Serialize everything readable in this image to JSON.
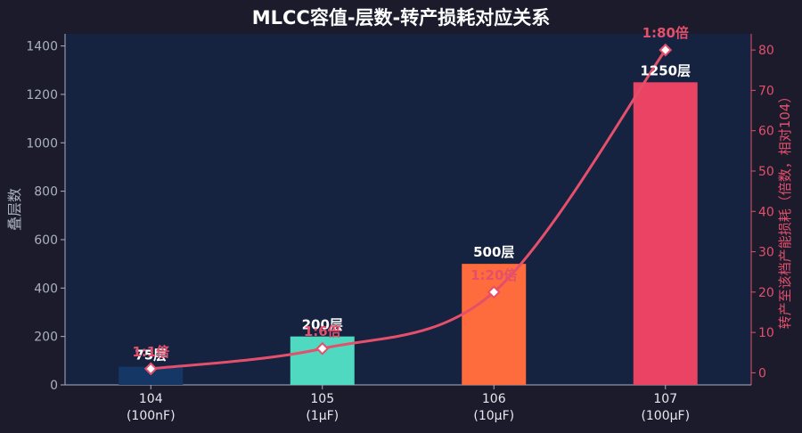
{
  "chart_data": {
    "type": "bar",
    "title": "MLCC容值-层数-转产损耗对应关系",
    "categories": [
      "104\n(100nF)",
      "105\n(1μF)",
      "106\n(10μF)",
      "107\n(100μF)"
    ],
    "ylabel": "叠层数",
    "y2label": "转产至该档产能损耗（倍数，相对104）",
    "ylim": [
      0,
      1450
    ],
    "y2lim": [
      -3,
      84
    ],
    "yticks": [
      "0",
      "200",
      "400",
      "600",
      "800",
      "1000",
      "1200",
      "1400"
    ],
    "y2ticks": [
      "0",
      "10",
      "20",
      "30",
      "40",
      "50",
      "60",
      "70",
      "80"
    ],
    "grid": false,
    "series": [
      {
        "kind": "bar",
        "values": [
          75,
          200,
          500,
          1250
        ],
        "labels": [
          "75层",
          "200层",
          "500层",
          "1250层"
        ]
      },
      {
        "kind": "line",
        "axis": "right",
        "values": [
          1,
          6,
          20,
          80
        ],
        "labels": [
          "1:1倍",
          "1:6倍",
          "1:20倍",
          "1:80倍"
        ]
      }
    ],
    "colors": {
      "background": "#1b1b2c",
      "plot_background": "#152240",
      "bars": [
        "#143766",
        "#4fd9c0",
        "#fe6b3c",
        "#ea4363"
      ],
      "line": "#e4506b",
      "right_axis": "#e4506b",
      "left_axis": "#aab0c0"
    }
  }
}
